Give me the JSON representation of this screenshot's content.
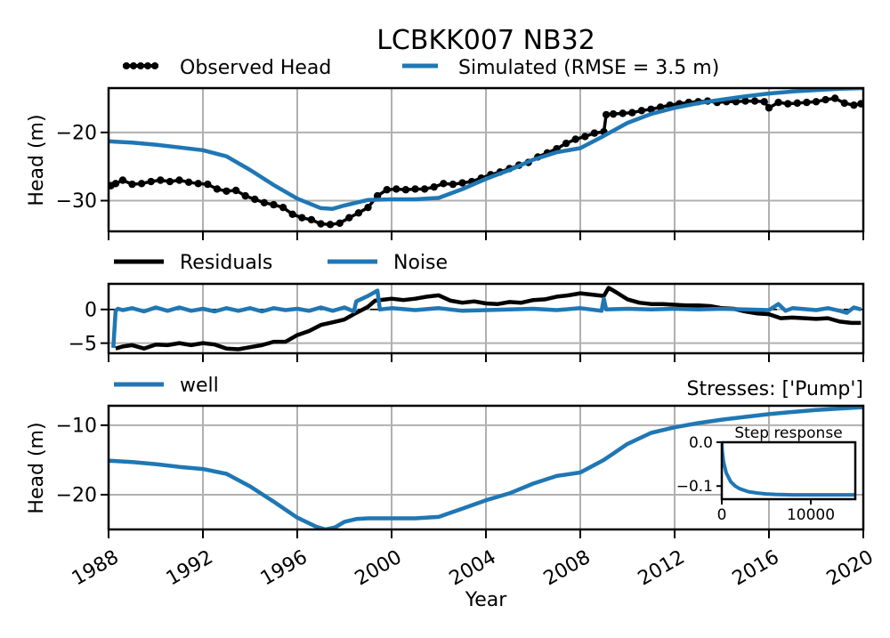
{
  "title": "LCBKK007 NB32",
  "xlabel": "Year",
  "colors": {
    "observed": "#000000",
    "simulated": "#1f77b4",
    "residuals": "#000000",
    "noise": "#1f77b4",
    "well": "#1f77b4",
    "grid": "#b0b0b0"
  },
  "chart_data": [
    {
      "id": "head",
      "type": "line",
      "ylabel": "Head (m)",
      "xlim": [
        1988,
        2020
      ],
      "ylim": [
        -34.5,
        -13.5
      ],
      "yticks": [
        -20,
        -30
      ],
      "ytick_labels": [
        "−20",
        "−30"
      ],
      "grid": true,
      "legend": {
        "placement": "top",
        "entries": [
          "Observed Head",
          "Simulated (RMSE = 3.5 m)"
        ]
      },
      "series": [
        {
          "name": "Observed Head",
          "style": "line+markers",
          "x": [
            1988.1,
            1988.3,
            1988.6,
            1989.0,
            1989.4,
            1989.8,
            1990.2,
            1990.6,
            1991.0,
            1991.4,
            1991.8,
            1992.2,
            1992.6,
            1993.0,
            1993.4,
            1993.8,
            1994.2,
            1994.6,
            1995.0,
            1995.4,
            1995.8,
            1996.2,
            1996.6,
            1997.0,
            1997.4,
            1997.8,
            1998.2,
            1998.6,
            1999.0,
            1999.4,
            1999.8,
            2000.2,
            2000.6,
            2001.0,
            2001.4,
            2001.8,
            2002.2,
            2002.6,
            2003.0,
            2003.4,
            2003.8,
            2004.2,
            2004.6,
            2005.0,
            2005.4,
            2005.8,
            2006.2,
            2006.6,
            2007.0,
            2007.4,
            2007.8,
            2008.2,
            2008.6,
            2009.0,
            2009.1,
            2009.4,
            2009.8,
            2010.2,
            2010.6,
            2011.0,
            2011.4,
            2011.8,
            2012.2,
            2012.6,
            2013.0,
            2013.4,
            2013.8,
            2014.2,
            2014.6,
            2015.0,
            2015.4,
            2015.8,
            2016.0,
            2016.4,
            2016.8,
            2017.2,
            2017.6,
            2018.0,
            2018.4,
            2018.8,
            2019.2,
            2019.6,
            2019.9
          ],
          "values": [
            -27.8,
            -27.5,
            -27.0,
            -27.6,
            -27.5,
            -27.2,
            -27.0,
            -27.2,
            -27.0,
            -27.3,
            -27.5,
            -27.6,
            -28.3,
            -28.6,
            -28.5,
            -29.3,
            -29.8,
            -30.3,
            -30.6,
            -31.0,
            -32.0,
            -32.5,
            -32.8,
            -33.4,
            -33.5,
            -33.3,
            -32.5,
            -31.8,
            -31.0,
            -29.3,
            -28.4,
            -28.3,
            -28.4,
            -28.3,
            -28.3,
            -28.0,
            -27.5,
            -27.6,
            -27.4,
            -27.2,
            -26.7,
            -26.2,
            -25.8,
            -25.3,
            -24.8,
            -24.4,
            -23.6,
            -23.0,
            -22.4,
            -21.6,
            -21.0,
            -20.6,
            -20.1,
            -19.9,
            -17.4,
            -17.3,
            -17.2,
            -17.1,
            -16.8,
            -16.6,
            -16.3,
            -16.0,
            -15.8,
            -15.6,
            -15.5,
            -15.4,
            -15.6,
            -15.5,
            -15.5,
            -15.4,
            -15.4,
            -15.5,
            -16.4,
            -15.6,
            -15.8,
            -15.7,
            -15.6,
            -15.5,
            -15.2,
            -15.0,
            -15.7,
            -16.0,
            -15.8
          ]
        },
        {
          "name": "Simulated (RMSE = 3.5 m)",
          "style": "line",
          "x": [
            1988,
            1989,
            1990,
            1991,
            1992,
            1993,
            1994,
            1995,
            1996,
            1997,
            1997.5,
            1998,
            1999,
            2000,
            2001,
            2002,
            2003,
            2004,
            2005,
            2006,
            2007,
            2008,
            2009,
            2010,
            2011,
            2012,
            2013,
            2014,
            2015,
            2016,
            2017,
            2018,
            2019,
            2020
          ],
          "values": [
            -21.3,
            -21.5,
            -21.8,
            -22.2,
            -22.6,
            -23.5,
            -25.5,
            -27.7,
            -29.7,
            -31.1,
            -31.2,
            -30.7,
            -29.9,
            -29.8,
            -29.8,
            -29.6,
            -28.3,
            -26.8,
            -25.5,
            -24.0,
            -22.9,
            -22.3,
            -20.5,
            -18.6,
            -17.3,
            -16.4,
            -15.7,
            -15.2,
            -14.7,
            -14.3,
            -14.0,
            -13.8,
            -13.6,
            -13.5
          ]
        }
      ]
    },
    {
      "id": "residuals",
      "type": "line",
      "xlim": [
        1988,
        2020
      ],
      "ylim": [
        -6.5,
        3.8
      ],
      "yticks": [
        0,
        -5
      ],
      "ytick_labels": [
        "0",
        "−5"
      ],
      "zero_line": true,
      "grid": true,
      "legend": {
        "placement": "top",
        "entries": [
          "Residuals",
          "Noise"
        ]
      },
      "series": [
        {
          "name": "Residuals",
          "x": [
            1988.3,
            1988.6,
            1989.0,
            1989.5,
            1990.0,
            1990.5,
            1991.0,
            1991.5,
            1992.0,
            1992.5,
            1993.0,
            1993.5,
            1994.0,
            1994.5,
            1995.0,
            1995.5,
            1996.0,
            1996.5,
            1997.0,
            1997.5,
            1998.0,
            1998.5,
            1999.0,
            1999.3,
            2000.0,
            2000.5,
            2001.0,
            2001.5,
            2002.0,
            2002.5,
            2003.0,
            2003.5,
            2004.0,
            2004.5,
            2005.0,
            2005.5,
            2006.0,
            2006.5,
            2007.0,
            2007.5,
            2008.0,
            2008.5,
            2009.0,
            2009.2,
            2009.5,
            2010.0,
            2010.5,
            2011.0,
            2011.5,
            2012.0,
            2012.5,
            2013.0,
            2013.5,
            2014.0,
            2014.5,
            2015.0,
            2015.5,
            2016.0,
            2016.5,
            2017.0,
            2017.5,
            2018.0,
            2018.5,
            2019.0,
            2019.5,
            2019.9
          ],
          "values": [
            -5.8,
            -5.5,
            -5.3,
            -5.8,
            -5.2,
            -5.3,
            -5.0,
            -5.3,
            -5.0,
            -5.2,
            -5.8,
            -5.9,
            -5.6,
            -5.3,
            -4.8,
            -4.8,
            -3.8,
            -3.2,
            -2.3,
            -1.9,
            -1.5,
            -0.5,
            0.4,
            1.3,
            1.6,
            1.4,
            1.6,
            1.9,
            2.1,
            1.3,
            1.0,
            1.2,
            0.9,
            0.8,
            1.1,
            1.0,
            1.4,
            1.5,
            1.9,
            2.1,
            2.4,
            2.2,
            2.0,
            3.2,
            2.6,
            1.5,
            1.0,
            0.8,
            0.8,
            0.7,
            0.6,
            0.6,
            0.5,
            0.2,
            0.1,
            -0.3,
            -0.6,
            -0.7,
            -1.3,
            -1.2,
            -1.3,
            -1.4,
            -1.3,
            -1.8,
            -2.0,
            -2.0
          ]
        },
        {
          "name": "Noise",
          "x": [
            1988.2,
            1988.3,
            1988.4,
            1988.6,
            1989.0,
            1989.5,
            1990.0,
            1990.5,
            1991.0,
            1991.5,
            1992.0,
            1992.5,
            1993.0,
            1993.5,
            1994.0,
            1994.5,
            1995.0,
            1995.5,
            1996.0,
            1996.5,
            1997.0,
            1997.5,
            1998.0,
            1998.4,
            1998.5,
            1999.0,
            1999.4,
            1999.5,
            2000.0,
            2001.0,
            2002.0,
            2003.0,
            2004.0,
            2005.0,
            2006.0,
            2007.0,
            2008.0,
            2008.9,
            2009.0,
            2009.1,
            2010.0,
            2011.0,
            2012.0,
            2013.0,
            2014.0,
            2015.0,
            2016.0,
            2016.4,
            2016.7,
            2017.0,
            2018.0,
            2018.5,
            2019.0,
            2019.3,
            2019.6,
            2019.9
          ],
          "values": [
            -5.7,
            -0.2,
            0.1,
            -0.1,
            0.2,
            -0.3,
            0.3,
            -0.2,
            0.3,
            -0.2,
            0.1,
            -0.3,
            0.2,
            -0.2,
            0.2,
            -0.3,
            0.2,
            -0.1,
            0.1,
            -0.2,
            0.3,
            -0.2,
            0.3,
            -0.3,
            1.2,
            2.0,
            2.8,
            0.0,
            0.2,
            -0.1,
            0.2,
            -0.2,
            -0.1,
            0.0,
            0.1,
            -0.1,
            0.2,
            -0.2,
            1.6,
            0.0,
            0.1,
            0.0,
            0.1,
            0.0,
            0.1,
            0.0,
            -0.1,
            0.8,
            -0.2,
            0.2,
            -0.1,
            0.2,
            -0.2,
            -0.5,
            0.3,
            0.0
          ]
        }
      ]
    },
    {
      "id": "well",
      "type": "line",
      "ylabel": "Head (m)",
      "xlim": [
        1988,
        2020
      ],
      "ylim": [
        -25,
        -7.2
      ],
      "yticks": [
        -10,
        -20
      ],
      "ytick_labels": [
        "−10",
        "−20"
      ],
      "xticks": [
        1988,
        1992,
        1996,
        2000,
        2004,
        2008,
        2012,
        2016,
        2020
      ],
      "xtick_labels": [
        "1988",
        "1992",
        "1996",
        "2000",
        "2004",
        "2008",
        "2012",
        "2016",
        "2020"
      ],
      "grid": true,
      "title_right": "Stresses: ['Pump']",
      "legend": {
        "placement": "top-left",
        "entries": [
          "well"
        ]
      },
      "series": [
        {
          "name": "well",
          "x": [
            1988,
            1989,
            1990,
            1991,
            1992,
            1993,
            1994,
            1995,
            1996,
            1996.8,
            1997.2,
            1997.6,
            1998,
            1998.5,
            1999,
            2000,
            2001,
            2002,
            2003,
            2004,
            2005,
            2006,
            2007,
            2008,
            2009,
            2010,
            2011,
            2012,
            2013,
            2014,
            2015,
            2016,
            2017,
            2018,
            2019,
            2020
          ],
          "values": [
            -15.1,
            -15.3,
            -15.6,
            -16.0,
            -16.3,
            -17.0,
            -18.8,
            -21.0,
            -23.3,
            -24.6,
            -25.0,
            -24.7,
            -23.9,
            -23.5,
            -23.4,
            -23.4,
            -23.4,
            -23.2,
            -22.0,
            -20.8,
            -19.8,
            -18.4,
            -17.3,
            -16.8,
            -15.0,
            -12.7,
            -11.1,
            -10.3,
            -9.7,
            -9.2,
            -8.8,
            -8.4,
            -8.1,
            -7.8,
            -7.6,
            -7.4
          ]
        }
      ]
    },
    {
      "id": "step",
      "type": "line",
      "title": "Step response",
      "xlim": [
        0,
        15000
      ],
      "ylim": [
        -0.13,
        0.0
      ],
      "xticks": [
        0,
        10000
      ],
      "xtick_labels": [
        "0",
        "10000"
      ],
      "yticks": [
        0.0,
        -0.1
      ],
      "ytick_labels": [
        "0.0",
        "−0.1"
      ],
      "grid": false,
      "series": [
        {
          "name": "",
          "x": [
            0,
            50,
            200,
            500,
            1000,
            1500,
            2000,
            3000,
            4000,
            5000,
            6000,
            8000,
            10000,
            12000,
            15000
          ],
          "values": [
            0.0,
            -0.02,
            -0.045,
            -0.07,
            -0.09,
            -0.1,
            -0.106,
            -0.113,
            -0.116,
            -0.118,
            -0.119,
            -0.12,
            -0.12,
            -0.12,
            -0.12
          ]
        }
      ]
    }
  ]
}
